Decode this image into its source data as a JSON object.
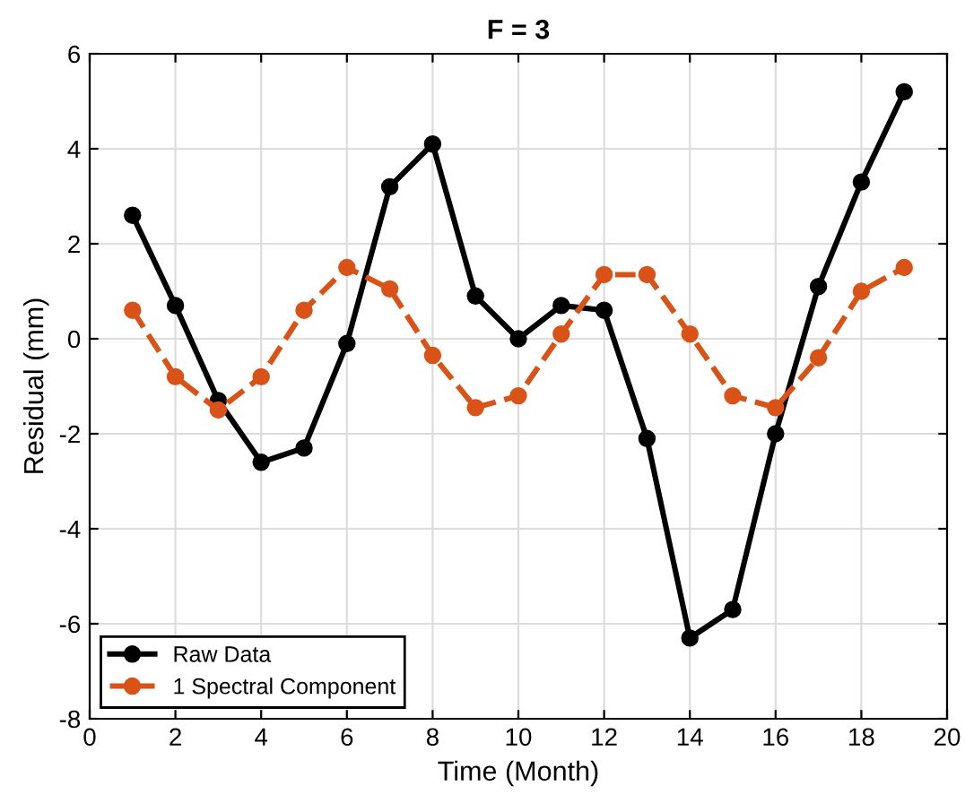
{
  "chart_data": {
    "type": "line",
    "title": "F = 3",
    "xlabel": "Time (Month)",
    "ylabel": "Residual (mm)",
    "x": [
      1,
      2,
      3,
      4,
      5,
      6,
      7,
      8,
      9,
      10,
      11,
      12,
      13,
      14,
      15,
      16,
      17,
      18,
      19
    ],
    "series": [
      {
        "name": "Raw Data",
        "color": "#000000",
        "line_style": "solid",
        "values": [
          2.6,
          0.7,
          -1.3,
          -2.6,
          -2.3,
          -0.1,
          3.2,
          4.1,
          0.9,
          0.0,
          0.7,
          0.6,
          -2.1,
          -6.3,
          -5.7,
          -2.0,
          1.1,
          3.3,
          5.2
        ]
      },
      {
        "name": "1 Spectral Component",
        "color": "#d95319",
        "line_style": "dashed",
        "values": [
          0.6,
          -0.8,
          -1.5,
          -0.8,
          0.6,
          1.5,
          1.05,
          -0.35,
          -1.45,
          -1.2,
          0.1,
          1.35,
          1.35,
          0.1,
          -1.2,
          -1.45,
          -0.4,
          1.0,
          1.5
        ]
      }
    ],
    "xlim": [
      0,
      20
    ],
    "xticks": [
      0,
      2,
      4,
      6,
      8,
      10,
      12,
      14,
      16,
      18,
      20
    ],
    "ylim": [
      -8,
      6
    ],
    "yticks": [
      -8,
      -6,
      -4,
      -2,
      0,
      2,
      4,
      6
    ],
    "grid": true,
    "legend": "bottom left",
    "marker": "circle"
  }
}
